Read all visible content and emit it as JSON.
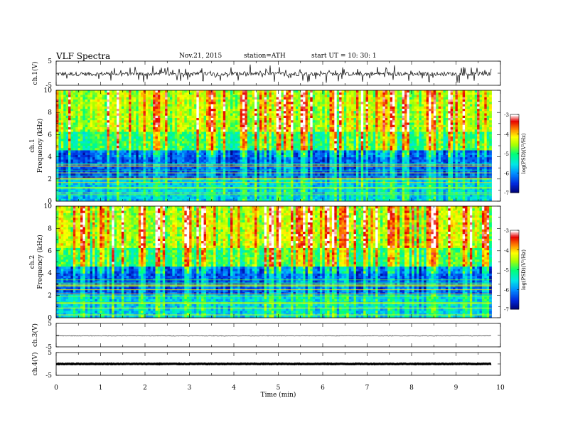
{
  "header": {
    "title": "VLF  Spectra",
    "date": "Nov.21, 2015",
    "station": "station=ATH",
    "start": "start  UT  =    10: 30: 1"
  },
  "chart_data": [
    {
      "type": "line",
      "title": "",
      "ylabel": "ch.1(V)",
      "ylim": [
        -5,
        5
      ],
      "yticks": [
        "5",
        "-5"
      ],
      "baseline": -0.3,
      "color": "#000000"
    },
    {
      "type": "heatmap",
      "ylabel_channel": "ch.1",
      "ylabel": "Frequency  (kHz)",
      "ylim": [
        0,
        10
      ],
      "yticks": [
        "0",
        "2",
        "4",
        "6",
        "8",
        "10"
      ],
      "colorbar": {
        "label": "log(PSD)(V²/Hz)",
        "range": [
          -7,
          -3
        ],
        "ticks": [
          "-3",
          "-4",
          "-5",
          "-6",
          "-7"
        ],
        "colors": [
          "#000080",
          "#0040ff",
          "#00c0ff",
          "#00ff80",
          "#c0ff00",
          "#ffff00",
          "#ff8000",
          "#ff0000",
          "#ffffff"
        ]
      }
    },
    {
      "type": "heatmap",
      "ylabel_channel": "ch.2",
      "ylabel": "Frequency  (kHz)",
      "ylim": [
        0,
        10
      ],
      "yticks": [
        "0",
        "2",
        "4",
        "6",
        "8",
        "10"
      ],
      "colorbar": {
        "label": "log(PSD)(V²/Hz)",
        "range": [
          -7,
          -3
        ],
        "ticks": [
          "-3",
          "-4",
          "-5",
          "-6",
          "-7"
        ]
      }
    },
    {
      "type": "line",
      "ylabel": "ch.3(V)",
      "ylim": [
        -5,
        5
      ],
      "yticks": [
        "5",
        "-5"
      ],
      "baseline": -0.3,
      "color": "#555555"
    },
    {
      "type": "line",
      "ylabel": "ch.4(V)",
      "ylim": [
        -5,
        5
      ],
      "yticks": [
        "5",
        "-5"
      ],
      "baseline": 0.0,
      "color": "#000000"
    }
  ],
  "xaxis": {
    "label": "Time  (min)",
    "xlim": [
      0,
      10
    ],
    "ticks": [
      "0",
      "1",
      "2",
      "3",
      "4",
      "5",
      "6",
      "7",
      "8",
      "9",
      "10"
    ],
    "data_end": 9.8
  }
}
